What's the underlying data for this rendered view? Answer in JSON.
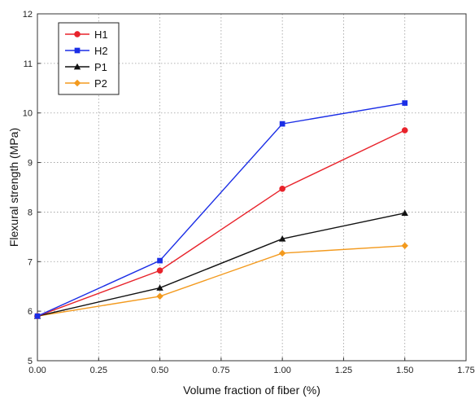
{
  "chart_data": {
    "type": "line",
    "title": "",
    "xlabel": "Volume fraction of fiber (%)",
    "ylabel": "Flexural strength (MPa)",
    "xlim": [
      0.0,
      1.75
    ],
    "ylim": [
      5,
      12
    ],
    "xticks": [
      0.0,
      0.25,
      0.5,
      0.75,
      1.0,
      1.25,
      1.5,
      1.75
    ],
    "xtick_labels": [
      "0.00",
      "0.25",
      "0.50",
      "0.75",
      "1.00",
      "1.25",
      "1.50",
      "1.75"
    ],
    "yticks": [
      5,
      6,
      7,
      8,
      9,
      10,
      11,
      12
    ],
    "ytick_labels": [
      "5",
      "6",
      "7",
      "8",
      "9",
      "10",
      "11",
      "12"
    ],
    "grid": true,
    "grid_style": "dotted",
    "legend_position": "top-left",
    "x": [
      0.0,
      0.5,
      1.0,
      1.5
    ],
    "series": [
      {
        "name": "H1",
        "color": "#e8232b",
        "marker": "circle",
        "values": [
          5.9,
          6.82,
          8.47,
          9.65
        ]
      },
      {
        "name": "H2",
        "color": "#1b2ee6",
        "marker": "square",
        "values": [
          5.9,
          7.02,
          9.78,
          10.2
        ]
      },
      {
        "name": "P1",
        "color": "#111111",
        "marker": "triangle",
        "values": [
          5.9,
          6.47,
          7.46,
          7.98
        ]
      },
      {
        "name": "P2",
        "color": "#f39a1e",
        "marker": "diamond",
        "values": [
          5.9,
          6.3,
          7.17,
          7.32
        ]
      }
    ]
  }
}
